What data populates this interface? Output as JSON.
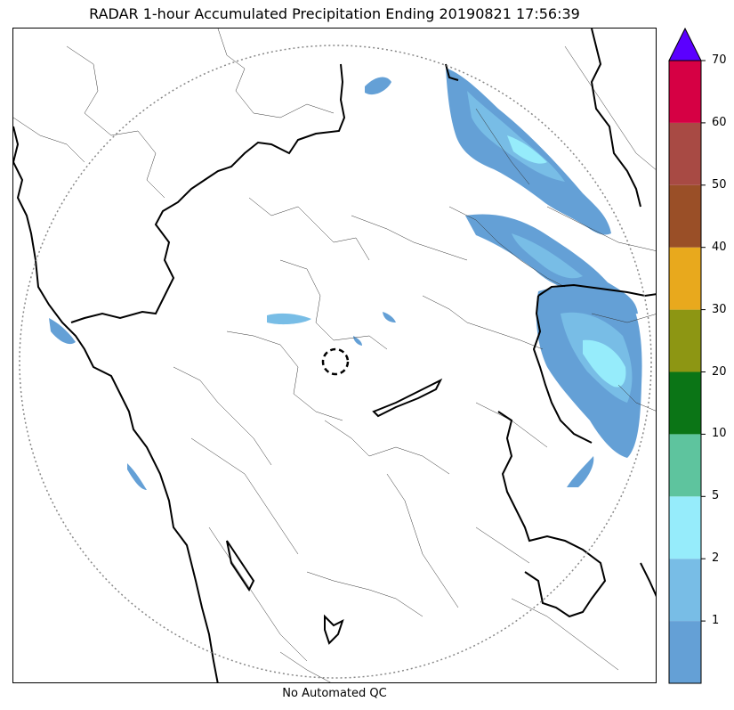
{
  "title": "RADAR 1-hour Accumulated Precipitation Ending 20190821 17:56:39",
  "footer_note": "No Automated QC",
  "colors": {
    "frame": "#000000",
    "border_thick": "#000000",
    "border_thin": "#333333",
    "range_ring": "#888888",
    "precip_low": "#64a0d6",
    "precip_mid": "#78bde6",
    "precip_high": "#96ecfb"
  },
  "colorbar": {
    "extend_color": "#5b00ff",
    "segments": [
      {
        "from": "0",
        "to": "1",
        "color": "#64a0d6"
      },
      {
        "from": "1",
        "to": "2",
        "color": "#78bde6"
      },
      {
        "from": "2",
        "to": "5",
        "color": "#96ecfb"
      },
      {
        "from": "5",
        "to": "10",
        "color": "#5ec49e"
      },
      {
        "from": "10",
        "to": "20",
        "color": "#0b7516"
      },
      {
        "from": "20",
        "to": "30",
        "color": "#8d9613"
      },
      {
        "from": "30",
        "to": "40",
        "color": "#e8a91d"
      },
      {
        "from": "40",
        "to": "50",
        "color": "#9a4f27"
      },
      {
        "from": "50",
        "to": "60",
        "color": "#a84a44"
      },
      {
        "from": "60",
        "to": "70",
        "color": "#d60044"
      }
    ],
    "tick_labels": [
      "1",
      "2",
      "5",
      "10",
      "20",
      "30",
      "40",
      "50",
      "60",
      "70"
    ]
  }
}
